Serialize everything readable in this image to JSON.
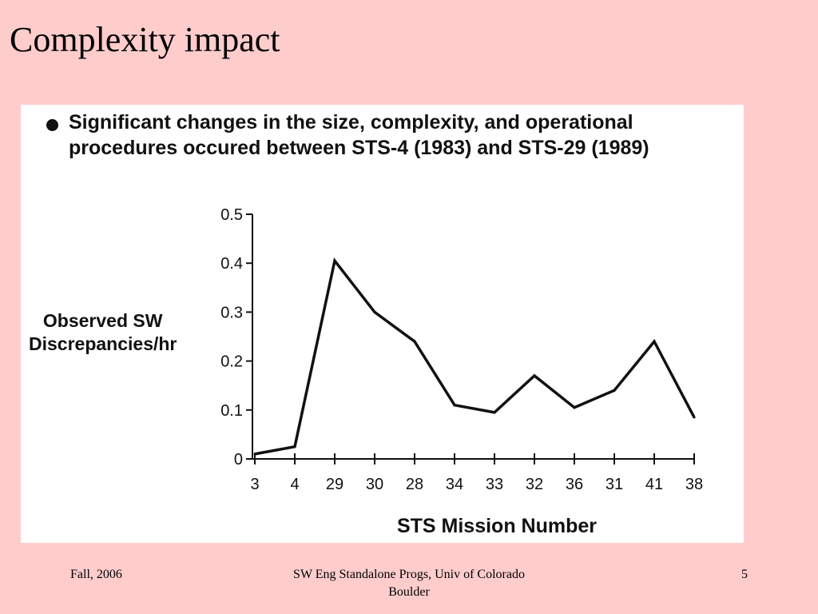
{
  "slide": {
    "title": "Complexity impact",
    "bullet": "Significant changes in the size, complexity, and operational procedures occured between STS-4 (1983) and STS-29 (1989)"
  },
  "footer": {
    "left": "Fall, 2006",
    "center": "SW Eng Standalone Progs, Univ of Colorado Boulder",
    "right": "5"
  },
  "chart_data": {
    "type": "line",
    "title": "",
    "xlabel": "STS Mission Number",
    "ylabel_lines": [
      "Observed SW",
      "Discrepancies/hr"
    ],
    "categories": [
      "3",
      "4",
      "29",
      "30",
      "28",
      "34",
      "33",
      "32",
      "36",
      "31",
      "41",
      "38"
    ],
    "values": [
      0.01,
      0.025,
      0.405,
      0.3,
      0.24,
      0.11,
      0.095,
      0.17,
      0.105,
      0.14,
      0.24,
      0.085
    ],
    "ylim": [
      0,
      0.5
    ],
    "yticks": [
      0,
      0.1,
      0.2,
      0.3,
      0.4,
      0.5
    ],
    "ytick_labels": [
      "0",
      "0.1",
      "0.2",
      "0.3",
      "0.4",
      "0.5"
    ],
    "grid": false,
    "line_color": "#111111"
  }
}
